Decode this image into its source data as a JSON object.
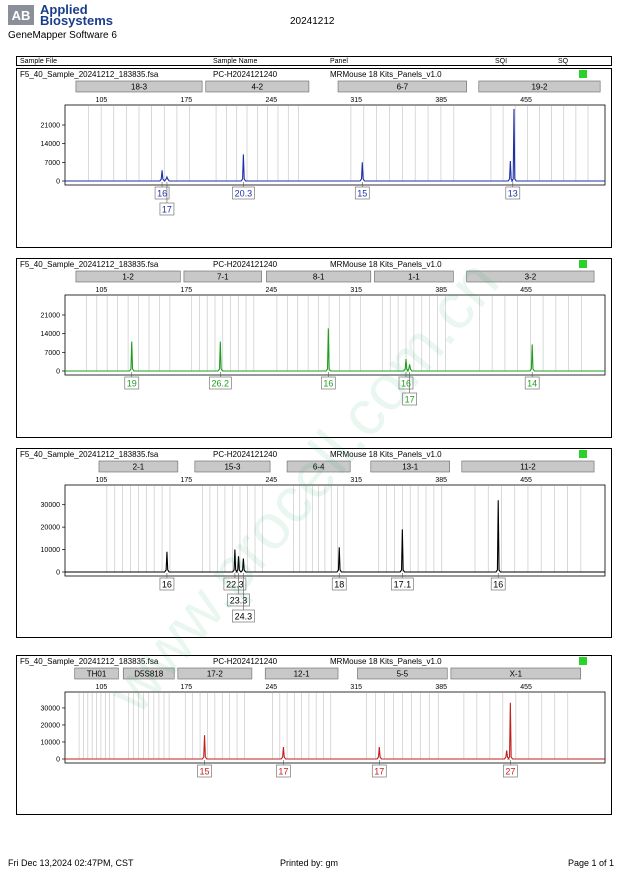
{
  "header": {
    "brand_line1": "Applied",
    "brand_line2": "Biosystems",
    "logo_text": "AB",
    "software": "GeneMapper Software 6",
    "date": "20241212"
  },
  "columns": [
    "Sample File",
    "Sample Name",
    "Panel",
    "SQI",
    "SQ"
  ],
  "footer": {
    "timestamp": "Fri Dec 13,2024 02:47PM, CST",
    "printed_by": "Printed by: gm",
    "page": "Page 1 of 1"
  },
  "watermark": "www.procell.com.cn",
  "chart_data": [
    {
      "type": "line",
      "sample_file": "F5_40_Sample_20241212_183835.fsa",
      "sample_name": "PC-H2024121240",
      "panel": "MRMouse 18 Kits_Panels_v1.0",
      "color": "#1f2fa8",
      "x_range": [
        75,
        520
      ],
      "x_ticks": [
        "105",
        "175",
        "245",
        "315",
        "385",
        "455"
      ],
      "y_ticks": [
        "0",
        "7000",
        "14000",
        "21000"
      ],
      "ylim": [
        0,
        27000
      ],
      "markers": [
        {
          "label": "18-3",
          "start": 84,
          "end": 188
        },
        {
          "label": "4-2",
          "start": 191,
          "end": 276
        },
        {
          "label": "6-7",
          "start": 300,
          "end": 406
        },
        {
          "label": "19-2",
          "start": 416,
          "end": 516
        }
      ],
      "peaks": [
        {
          "x": 155,
          "y": 4000
        },
        {
          "x": 159,
          "y": 1500
        },
        {
          "x": 222,
          "y": 10000
        },
        {
          "x": 320,
          "y": 7000
        },
        {
          "x": 442,
          "y": 7500
        },
        {
          "x": 445,
          "y": 27000
        }
      ],
      "alleles": [
        {
          "x": 155,
          "label": "16",
          "row": 0
        },
        {
          "x": 159,
          "label": "17",
          "row": 1
        },
        {
          "x": 222,
          "label": "20.3",
          "row": 0
        },
        {
          "x": 320,
          "label": "15",
          "row": 0
        },
        {
          "x": 444,
          "label": "13",
          "row": 0
        }
      ]
    },
    {
      "type": "line",
      "sample_file": "F5_40_Sample_20241212_183835.fsa",
      "sample_name": "PC-H2024121240",
      "panel": "MRMouse 18 Kits_Panels_v1.0",
      "color": "#1e9e1e",
      "x_range": [
        75,
        520
      ],
      "x_ticks": [
        "105",
        "175",
        "245",
        "315",
        "385",
        "455"
      ],
      "y_ticks": [
        "0",
        "7000",
        "14000",
        "21000"
      ],
      "ylim": [
        0,
        27000
      ],
      "markers": [
        {
          "label": "1-2",
          "start": 84,
          "end": 170
        },
        {
          "label": "7-1",
          "start": 173,
          "end": 237
        },
        {
          "label": "8-1",
          "start": 241,
          "end": 327
        },
        {
          "label": "1-1",
          "start": 330,
          "end": 395
        },
        {
          "label": "3-2",
          "start": 406,
          "end": 511
        }
      ],
      "peaks": [
        {
          "x": 130,
          "y": 11000
        },
        {
          "x": 203,
          "y": 11000
        },
        {
          "x": 292,
          "y": 16000
        },
        {
          "x": 356,
          "y": 4500
        },
        {
          "x": 359,
          "y": 2500
        },
        {
          "x": 460,
          "y": 10000
        }
      ],
      "alleles": [
        {
          "x": 130,
          "label": "19",
          "row": 0
        },
        {
          "x": 203,
          "label": "26.2",
          "row": 0
        },
        {
          "x": 292,
          "label": "16",
          "row": 0
        },
        {
          "x": 356,
          "label": "16",
          "row": 0
        },
        {
          "x": 359,
          "label": "17",
          "row": 1
        },
        {
          "x": 460,
          "label": "14",
          "row": 0
        }
      ]
    },
    {
      "type": "line",
      "sample_file": "F5_40_Sample_20241212_183835.fsa",
      "sample_name": "PC-H2024121240",
      "panel": "MRMouse 18 Kits_Panels_v1.0",
      "color": "#000000",
      "x_range": [
        75,
        520
      ],
      "x_ticks": [
        "105",
        "175",
        "245",
        "315",
        "385",
        "455"
      ],
      "y_ticks": [
        "0",
        "10000",
        "20000",
        "30000"
      ],
      "ylim": [
        0,
        37000
      ],
      "markers": [
        {
          "label": "2-1",
          "start": 103,
          "end": 168
        },
        {
          "label": "15-3",
          "start": 182,
          "end": 244
        },
        {
          "label": "6-4",
          "start": 258,
          "end": 310
        },
        {
          "label": "13-1",
          "start": 327,
          "end": 392
        },
        {
          "label": "11-2",
          "start": 402,
          "end": 511
        }
      ],
      "peaks": [
        {
          "x": 159,
          "y": 9000
        },
        {
          "x": 215,
          "y": 10000
        },
        {
          "x": 218,
          "y": 7000
        },
        {
          "x": 222,
          "y": 6000
        },
        {
          "x": 301,
          "y": 11000
        },
        {
          "x": 353,
          "y": 19000
        },
        {
          "x": 432,
          "y": 32000
        }
      ],
      "alleles": [
        {
          "x": 159,
          "label": "16",
          "row": 0
        },
        {
          "x": 215,
          "label": "22.3",
          "row": 0
        },
        {
          "x": 218,
          "label": "23.3",
          "row": 1
        },
        {
          "x": 222,
          "label": "24.3",
          "row": 2
        },
        {
          "x": 301,
          "label": "18",
          "row": 0
        },
        {
          "x": 353,
          "label": "17.1",
          "row": 0
        },
        {
          "x": 432,
          "label": "16",
          "row": 0
        }
      ]
    },
    {
      "type": "line",
      "sample_file": "F5_40_Sample_20241212_183835.fsa",
      "sample_name": "PC-H2024121240",
      "panel": "MRMouse 18 Kits_Panels_v1.0",
      "color": "#c0201e",
      "x_range": [
        75,
        520
      ],
      "x_ticks": [
        "105",
        "175",
        "245",
        "315",
        "385",
        "455"
      ],
      "y_ticks": [
        "0",
        "10000",
        "20000",
        "30000"
      ],
      "ylim": [
        0,
        37000
      ],
      "markers": [
        {
          "label": "TH01",
          "start": 83,
          "end": 119
        },
        {
          "label": "D5S818",
          "start": 123,
          "end": 165
        },
        {
          "label": "17-2",
          "start": 168,
          "end": 229
        },
        {
          "label": "12-1",
          "start": 240,
          "end": 300
        },
        {
          "label": "5-5",
          "start": 316,
          "end": 390
        },
        {
          "label": "X-1",
          "start": 393,
          "end": 500
        }
      ],
      "peaks": [
        {
          "x": 190,
          "y": 14000
        },
        {
          "x": 255,
          "y": 7000
        },
        {
          "x": 334,
          "y": 7000
        },
        {
          "x": 439,
          "y": 5000
        },
        {
          "x": 442,
          "y": 33000
        }
      ],
      "alleles": [
        {
          "x": 190,
          "label": "15",
          "row": 0
        },
        {
          "x": 255,
          "label": "17",
          "row": 0
        },
        {
          "x": 334,
          "label": "17",
          "row": 0
        },
        {
          "x": 442,
          "label": "27",
          "row": 0
        }
      ]
    }
  ]
}
